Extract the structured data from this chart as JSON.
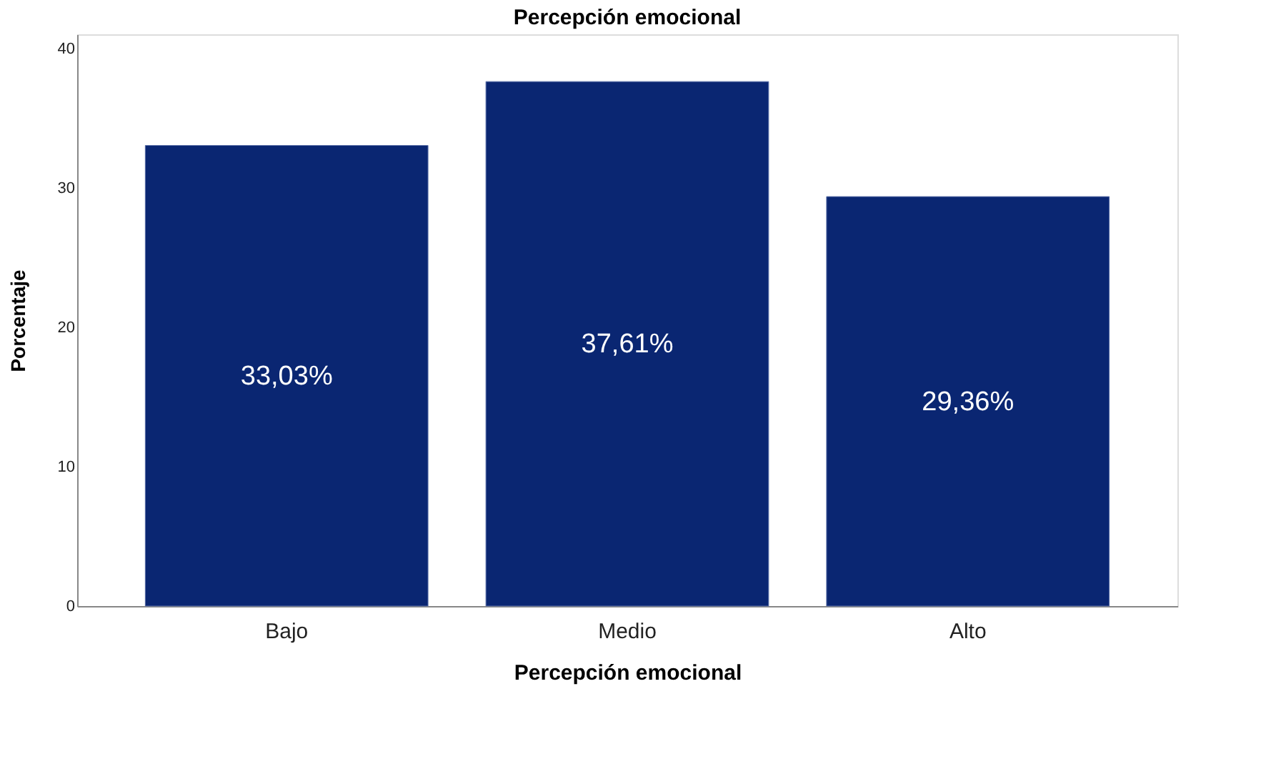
{
  "chart_data": {
    "type": "bar",
    "title": "Percepción emocional",
    "xlabel": "Percepción emocional",
    "ylabel": "Porcentaje",
    "categories": [
      "Bajo",
      "Medio",
      "Alto"
    ],
    "values": [
      33.03,
      37.61,
      29.36
    ],
    "value_labels": [
      "33,03%",
      "37,61%",
      "29,36%"
    ],
    "color": "#0a2672",
    "ylim": [
      0,
      41
    ],
    "yticks": [
      0,
      10,
      20,
      30,
      40
    ],
    "grid": false
  }
}
